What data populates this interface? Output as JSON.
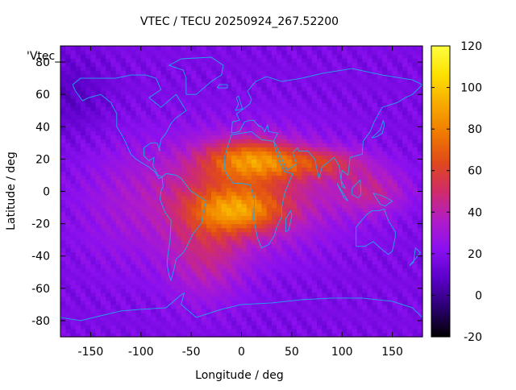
{
  "chart_data": {
    "type": "heatmap",
    "title": "VTEC / TECU 20250924_267.52200",
    "xlabel": "Longitude / deg",
    "ylabel": "Latitude / deg",
    "key_label": "'Vtec_",
    "xlim": [
      -180,
      180
    ],
    "ylim": [
      -90,
      90
    ],
    "xticks": [
      -150,
      -100,
      -50,
      0,
      50,
      100,
      150
    ],
    "yticks": [
      -80,
      -60,
      -40,
      -20,
      0,
      20,
      40,
      60,
      80
    ],
    "colorbar": {
      "range": [
        -20,
        120
      ],
      "ticks": [
        120,
        100,
        80,
        60,
        40,
        20,
        0,
        -20
      ],
      "palette": [
        "#000000",
        "#2a0070",
        "#5a00c8",
        "#8a10f0",
        "#b01cc8",
        "#d02c6a",
        "#e04a1a",
        "#f07a00",
        "#f7aa00",
        "#fde000",
        "#ffff40"
      ]
    },
    "field_description": "Global VTEC map; background ~15-25 TECU, enhanced equatorial anomaly crests up to ~100-110 TECU over Africa/Atlantic around 0-30 deg lon, tongue extending east to ~150 deg lon"
  }
}
